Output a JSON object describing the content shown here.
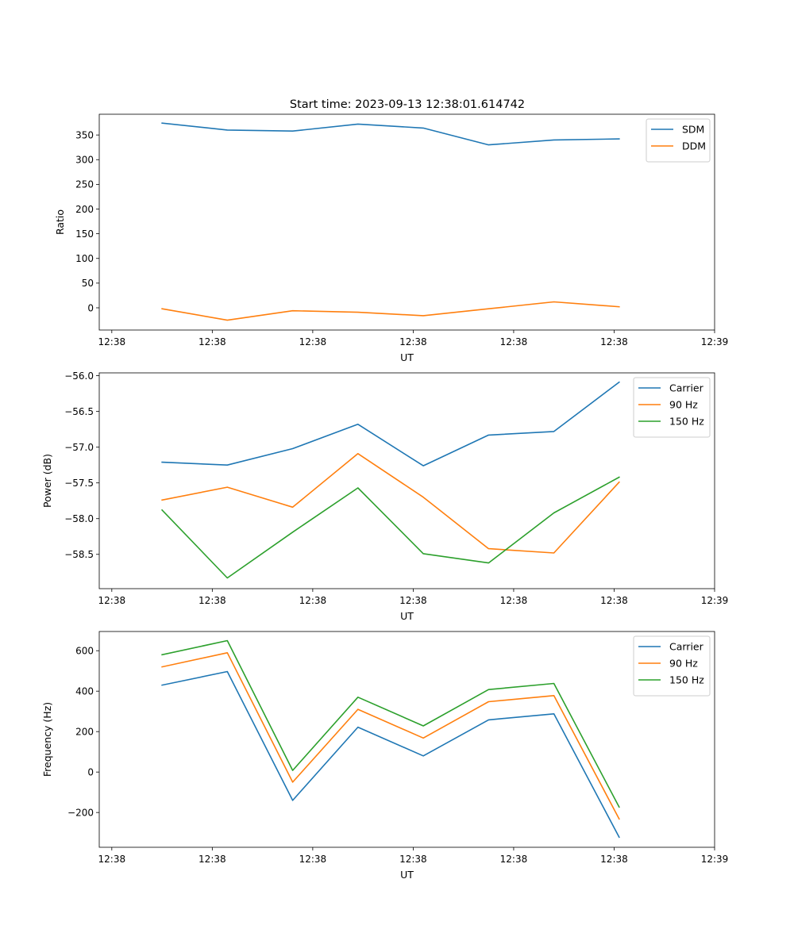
{
  "title": "Start time: 2023-09-13 12:38:01.614742",
  "chart_data": [
    {
      "type": "line",
      "xlabel": "UT",
      "ylabel": "Ratio",
      "x": [
        0.5,
        1.15,
        1.8,
        2.45,
        3.1,
        3.75,
        4.4,
        5.05
      ],
      "xlim": [
        -0.125,
        6.0
      ],
      "xticks": [
        0,
        1,
        2,
        3,
        4,
        5,
        6
      ],
      "xtick_labels": [
        "12:38",
        "12:38",
        "12:38",
        "12:38",
        "12:38",
        "12:38",
        "12:39"
      ],
      "ylim": [
        -45,
        392
      ],
      "yticks": [
        0,
        50,
        100,
        150,
        200,
        250,
        300,
        350
      ],
      "ytick_labels": [
        "0",
        "50",
        "100",
        "150",
        "200",
        "250",
        "300",
        "350"
      ],
      "legend": "top-right",
      "series": [
        {
          "name": "SDM",
          "color": "#1f77b4",
          "values": [
            374,
            360,
            358,
            372,
            364,
            330,
            340,
            342
          ]
        },
        {
          "name": "DDM",
          "color": "#ff7f0e",
          "values": [
            -2,
            -25,
            -6,
            -9,
            -16,
            -2,
            12,
            2
          ]
        }
      ]
    },
    {
      "type": "line",
      "xlabel": "UT",
      "ylabel": "Power (dB)",
      "x": [
        0.5,
        1.15,
        1.8,
        2.45,
        3.1,
        3.75,
        4.4,
        5.05
      ],
      "xlim": [
        -0.125,
        6.0
      ],
      "xticks": [
        0,
        1,
        2,
        3,
        4,
        5,
        6
      ],
      "xtick_labels": [
        "12:38",
        "12:38",
        "12:38",
        "12:38",
        "12:38",
        "12:38",
        "12:39"
      ],
      "ylim": [
        -58.98,
        -55.96
      ],
      "yticks": [
        -58.5,
        -58.0,
        -57.5,
        -57.0,
        -56.5,
        -56.0
      ],
      "ytick_labels": [
        "−58.5",
        "−58.0",
        "−57.5",
        "−57.0",
        "−56.5",
        "−56.0"
      ],
      "legend": "top-right",
      "series": [
        {
          "name": "Carrier",
          "color": "#1f77b4",
          "values": [
            -57.21,
            -57.25,
            -57.02,
            -56.68,
            -57.26,
            -56.83,
            -56.78,
            -56.09
          ]
        },
        {
          "name": "90 Hz",
          "color": "#ff7f0e",
          "values": [
            -57.74,
            -57.56,
            -57.84,
            -57.09,
            -57.7,
            -58.42,
            -58.48,
            -57.49
          ]
        },
        {
          "name": "150 Hz",
          "color": "#2ca02c",
          "values": [
            -57.88,
            -58.83,
            -58.19,
            -57.57,
            -58.49,
            -58.62,
            -57.92,
            -57.42
          ]
        }
      ]
    },
    {
      "type": "line",
      "xlabel": "UT",
      "ylabel": "Frequency (Hz)",
      "x": [
        0.5,
        1.15,
        1.8,
        2.45,
        3.1,
        3.75,
        4.4,
        5.05
      ],
      "xlim": [
        -0.125,
        6.0
      ],
      "xticks": [
        0,
        1,
        2,
        3,
        4,
        5,
        6
      ],
      "xtick_labels": [
        "12:38",
        "12:38",
        "12:38",
        "12:38",
        "12:38",
        "12:38",
        "12:39"
      ],
      "ylim": [
        -372,
        695
      ],
      "yticks": [
        -200,
        0,
        200,
        400,
        600
      ],
      "ytick_labels": [
        "−200",
        "0",
        "200",
        "400",
        "600"
      ],
      "legend": "top-right",
      "series": [
        {
          "name": "Carrier",
          "color": "#1f77b4",
          "values": [
            430,
            497,
            -140,
            222,
            80,
            258,
            288,
            -322
          ]
        },
        {
          "name": "90 Hz",
          "color": "#ff7f0e",
          "values": [
            520,
            590,
            -50,
            310,
            168,
            348,
            378,
            -232
          ]
        },
        {
          "name": "150 Hz",
          "color": "#2ca02c",
          "values": [
            580,
            650,
            8,
            370,
            228,
            408,
            438,
            -173
          ]
        }
      ]
    }
  ]
}
